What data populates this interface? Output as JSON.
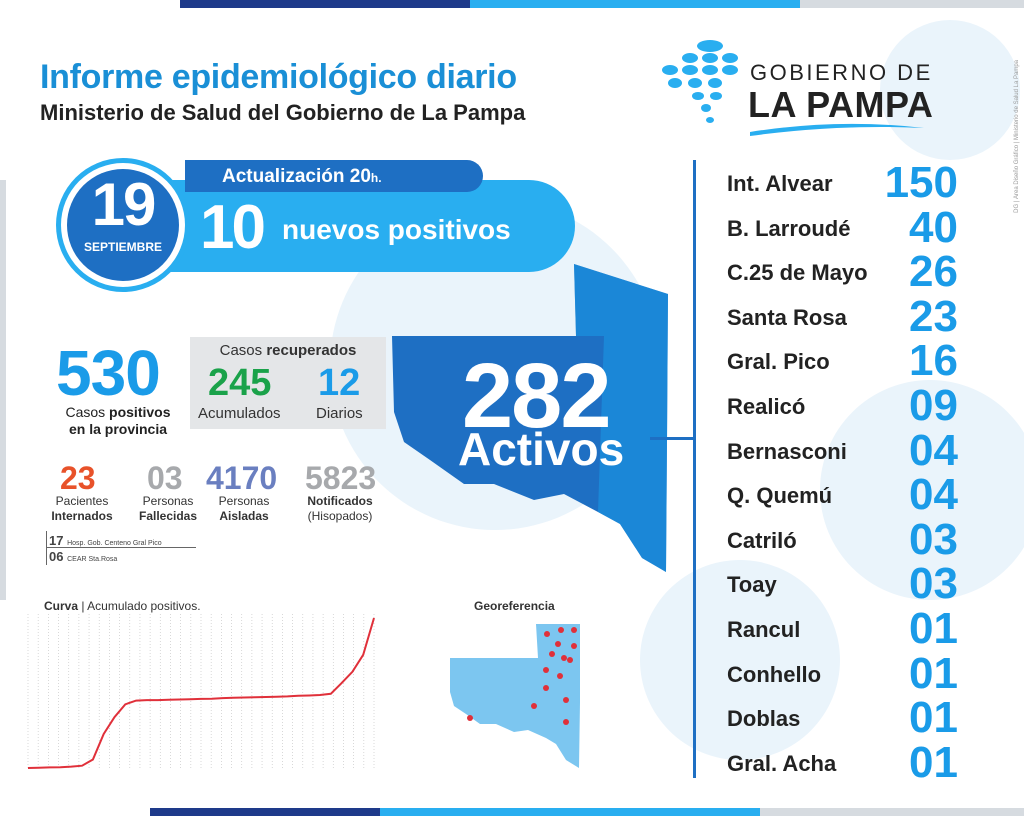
{
  "header": {
    "title": "Informe epidemiológico diario",
    "subtitle": "Ministerio de Salud del Gobierno de La Pampa"
  },
  "logo": {
    "line1": "GOBIERNO DE",
    "line2": "LA PAMPA"
  },
  "side_credit": "DG | Área Diseño Gráfico | Ministerio de Salud La Pampa",
  "date_badge": {
    "day": "19",
    "month": "SEPTIEMBRE",
    "update_label": "Actualización 20",
    "update_suffix": "h.",
    "new_count": "10",
    "new_label": "nuevos positivos"
  },
  "totals": {
    "positives": "530",
    "positives_label_pre": "Casos ",
    "positives_label_bold": "positivos",
    "positives_label_line2": "en la provincia"
  },
  "recovered": {
    "title_pre": "Casos ",
    "title_bold": "recuperados",
    "accumulated": "245",
    "accumulated_label": "Acumulados",
    "daily": "12",
    "daily_label": "Diarios"
  },
  "small_stats": [
    {
      "value": "23",
      "line1": "Pacientes",
      "line2": "Internados",
      "color": "#e8522a"
    },
    {
      "value": "03",
      "line1": "Personas",
      "line2": "Fallecidas",
      "color": "#a7a9ac"
    },
    {
      "value": "4170",
      "line1": "Personas",
      "line2": "Aisladas",
      "color": "#6a7fc0"
    },
    {
      "value": "5823",
      "line1": "Notificados",
      "line2": "(Hisopados)",
      "color": "#a7a9ac"
    }
  ],
  "hospital_notes": [
    {
      "count": "17",
      "place": "Hosp. Gob. Centeno Gral Pico"
    },
    {
      "count": "06",
      "place": "CEAR Sta.Rosa"
    }
  ],
  "active": {
    "value": "282",
    "label": "Activos"
  },
  "localities": [
    {
      "name": "Int. Alvear",
      "count": "150"
    },
    {
      "name": "B. Larroudé",
      "count": "40"
    },
    {
      "name": "C.25 de Mayo",
      "count": "26"
    },
    {
      "name": "Santa Rosa",
      "count": "23"
    },
    {
      "name": "Gral. Pico",
      "count": "16"
    },
    {
      "name": "Realicó",
      "count": "09"
    },
    {
      "name": "Bernasconi",
      "count": "04"
    },
    {
      "name": "Q. Quemú",
      "count": "04"
    },
    {
      "name": "Catriló",
      "count": "03"
    },
    {
      "name": "Toay",
      "count": "03"
    },
    {
      "name": "Rancul",
      "count": "01"
    },
    {
      "name": "Conhello",
      "count": "01"
    },
    {
      "name": "Doblas",
      "count": "01"
    },
    {
      "name": "Gral. Acha",
      "count": "01"
    }
  ],
  "curve": {
    "title_bold": "Curva",
    "title_rest": " | Acumulado positivos."
  },
  "georef": {
    "title": "Georeferencia"
  },
  "chart_data": {
    "type": "line",
    "title": "Curva | Acumulado positivos.",
    "series": [
      {
        "values": [
          0,
          1,
          2,
          3,
          5,
          8,
          30,
          120,
          180,
          225,
          238,
          240,
          240,
          241,
          242,
          243,
          244,
          245,
          247,
          248,
          249,
          250,
          251,
          252,
          253,
          255,
          256,
          258,
          262,
          300,
          340,
          400,
          530
        ]
      }
    ]
  },
  "colors": {
    "primary": "#1a9be8",
    "dark_blue": "#1e6fc3",
    "light_blue": "#29aef0",
    "green": "#1aa24a",
    "orange": "#e8522a",
    "case_dot": "#e0303a"
  }
}
